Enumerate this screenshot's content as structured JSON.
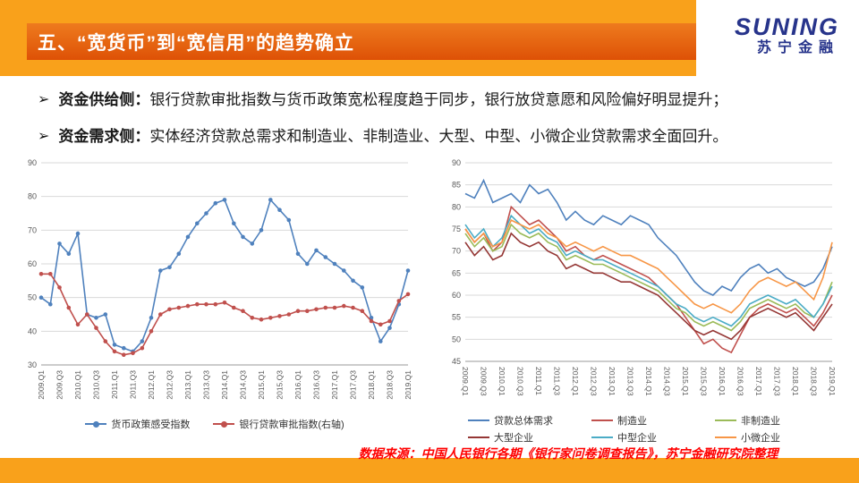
{
  "header": {
    "title": "五、“宽货币”到“宽信用”的趋势确立",
    "logo_main": "SUNING",
    "logo_sub": "苏宁金融"
  },
  "theme": {
    "accent": "#F9A11B",
    "titlebar_top": "#EE7B1E",
    "titlebar_bottom": "#DE5106",
    "logo_blue": "#27348B",
    "source_red": "#FF0000",
    "grid": "#D9D9D9",
    "tick": "#595959"
  },
  "bullets": [
    {
      "marker": "➢",
      "label": "资金供给侧：",
      "text": "银行贷款审批指数与货币政策宽松程度趋于同步，银行放贷意愿和风险偏好明显提升；"
    },
    {
      "marker": "➢",
      "label": "资金需求侧：",
      "text": "实体经济贷款总需求和制造业、非制造业、大型、中型、小微企业贷款需求全面回升。"
    }
  ],
  "source_note": "数据来源：中国人民银行各期《银行家问卷调查报告》，苏宁金融研究院整理",
  "chart_data": [
    {
      "type": "line",
      "title": "",
      "xlabel": "",
      "ylabel": "",
      "ylim": [
        30,
        90
      ],
      "ystep": 10,
      "grid": true,
      "legend_position": "bottom",
      "label_rotation": -90,
      "categories": [
        "2009.Q1",
        "2009.Q2",
        "2009.Q3",
        "2009.Q4",
        "2010.Q1",
        "2010.Q2",
        "2010.Q3",
        "2010.Q4",
        "2011.Q1",
        "2011.Q2",
        "2011.Q3",
        "2011.Q4",
        "2012.Q1",
        "2012.Q2",
        "2012.Q3",
        "2012.Q4",
        "2013.Q1",
        "2013.Q2",
        "2013.Q3",
        "2013.Q4",
        "2014.Q1",
        "2014.Q2",
        "2014.Q3",
        "2014.Q4",
        "2015.Q1",
        "2015.Q2",
        "2015.Q3",
        "2015.Q4",
        "2016.Q1",
        "2016.Q2",
        "2016.Q3",
        "2016.Q4",
        "2017.Q1",
        "2017.Q2",
        "2017.Q3",
        "2017.Q4",
        "2018.Q1",
        "2018.Q2",
        "2018.Q3",
        "2018.Q4",
        "2019.Q1"
      ],
      "series": [
        {
          "name": "货币政策感受指数",
          "color": "#4F81BD",
          "markers": true,
          "values": [
            50,
            48,
            66,
            63,
            69,
            45,
            44,
            45,
            36,
            35,
            34,
            37,
            44,
            58,
            59,
            63,
            68,
            72,
            75,
            78,
            79,
            72,
            68,
            66,
            70,
            79,
            76,
            73,
            63,
            60,
            64,
            62,
            60,
            58,
            55,
            53,
            44,
            37,
            41,
            48,
            58
          ]
        },
        {
          "name": "银行贷款审批指数(右轴)",
          "color": "#C0504D",
          "markers": true,
          "values": [
            57,
            57,
            53,
            47,
            42,
            45,
            41,
            37,
            34,
            33,
            33.5,
            35,
            40,
            45,
            46.5,
            47,
            47.5,
            48,
            48,
            48,
            48.5,
            47,
            46,
            44,
            43.5,
            44,
            44.5,
            45,
            46,
            46,
            46.5,
            47,
            47,
            47.5,
            47,
            46,
            43,
            42,
            43,
            49,
            51
          ]
        }
      ]
    },
    {
      "type": "line",
      "title": "",
      "xlabel": "",
      "ylabel": "",
      "ylim": [
        45,
        90
      ],
      "ystep": 5,
      "grid": true,
      "legend_position": "bottom",
      "label_rotation": 90,
      "categories": [
        "2009.Q1",
        "2009.Q2",
        "2009.Q3",
        "2009.Q4",
        "2010.Q1",
        "2010.Q2",
        "2010.Q3",
        "2010.Q4",
        "2011.Q1",
        "2011.Q2",
        "2011.Q3",
        "2011.Q4",
        "2012.Q1",
        "2012.Q2",
        "2012.Q3",
        "2012.Q4",
        "2013.Q1",
        "2013.Q2",
        "2013.Q3",
        "2013.Q4",
        "2014.Q1",
        "2014.Q2",
        "2014.Q3",
        "2014.Q4",
        "2015.Q1",
        "2015.Q2",
        "2015.Q3",
        "2015.Q4",
        "2016.Q1",
        "2016.Q2",
        "2016.Q3",
        "2016.Q4",
        "2017.Q1",
        "2017.Q2",
        "2017.Q3",
        "2017.Q4",
        "2018.Q1",
        "2018.Q2",
        "2018.Q3",
        "2018.Q4",
        "2019.Q1"
      ],
      "series": [
        {
          "name": "贷款总体需求",
          "color": "#4F81BD",
          "markers": false,
          "values": [
            83,
            82,
            86,
            81,
            82,
            83,
            81,
            85,
            83,
            84,
            81,
            77,
            79,
            77,
            76,
            78,
            77,
            76,
            78,
            77,
            76,
            73,
            71,
            69,
            66,
            63,
            61,
            60,
            62,
            61,
            64,
            66,
            67,
            65,
            66,
            64,
            63,
            62,
            63,
            66,
            71
          ]
        },
        {
          "name": "制造业",
          "color": "#C0504D",
          "markers": false,
          "values": [
            75,
            72,
            74,
            70,
            72,
            80,
            78,
            76,
            77,
            75,
            73,
            70,
            71,
            69,
            68,
            69,
            68,
            67,
            66,
            65,
            64,
            62,
            60,
            58,
            55,
            52,
            49,
            50,
            48,
            47,
            51,
            55,
            57,
            58,
            57,
            56,
            57,
            55,
            53,
            56,
            60
          ]
        },
        {
          "name": "非制造业",
          "color": "#9BBB59",
          "markers": false,
          "values": [
            74,
            71,
            73,
            70,
            71,
            76,
            74,
            73,
            74,
            72,
            71,
            68,
            69,
            68,
            67,
            67,
            66,
            65,
            64,
            63,
            62,
            61,
            59,
            57,
            56,
            54,
            53,
            54,
            53,
            52,
            54,
            57,
            58,
            59,
            58,
            57,
            58,
            56,
            55,
            58,
            63
          ]
        },
        {
          "name": "大型企业",
          "color": "#953735",
          "markers": false,
          "values": [
            72,
            69,
            71,
            68,
            69,
            74,
            72,
            71,
            72,
            70,
            69,
            66,
            67,
            66,
            65,
            65,
            64,
            63,
            63,
            62,
            61,
            60,
            58,
            56,
            54,
            52,
            51,
            52,
            51,
            50,
            52,
            55,
            56,
            57,
            56,
            55,
            56,
            54,
            52,
            55,
            58
          ]
        },
        {
          "name": "中型企业",
          "color": "#4BACC6",
          "markers": false,
          "values": [
            76,
            73,
            75,
            71,
            73,
            78,
            76,
            74,
            75,
            73,
            72,
            69,
            70,
            69,
            68,
            68,
            67,
            66,
            65,
            64,
            63,
            62,
            60,
            58,
            57,
            55,
            54,
            55,
            54,
            53,
            55,
            58,
            59,
            60,
            59,
            58,
            59,
            57,
            55,
            58,
            62
          ]
        },
        {
          "name": "小微企业",
          "color": "#F79646",
          "markers": false,
          "values": [
            75,
            72,
            74,
            71,
            72,
            77,
            76,
            75,
            76,
            74,
            73,
            71,
            72,
            71,
            70,
            71,
            70,
            69,
            69,
            68,
            67,
            66,
            64,
            62,
            60,
            58,
            57,
            58,
            57,
            56,
            58,
            61,
            63,
            64,
            63,
            62,
            63,
            61,
            59,
            64,
            72
          ]
        }
      ]
    }
  ]
}
